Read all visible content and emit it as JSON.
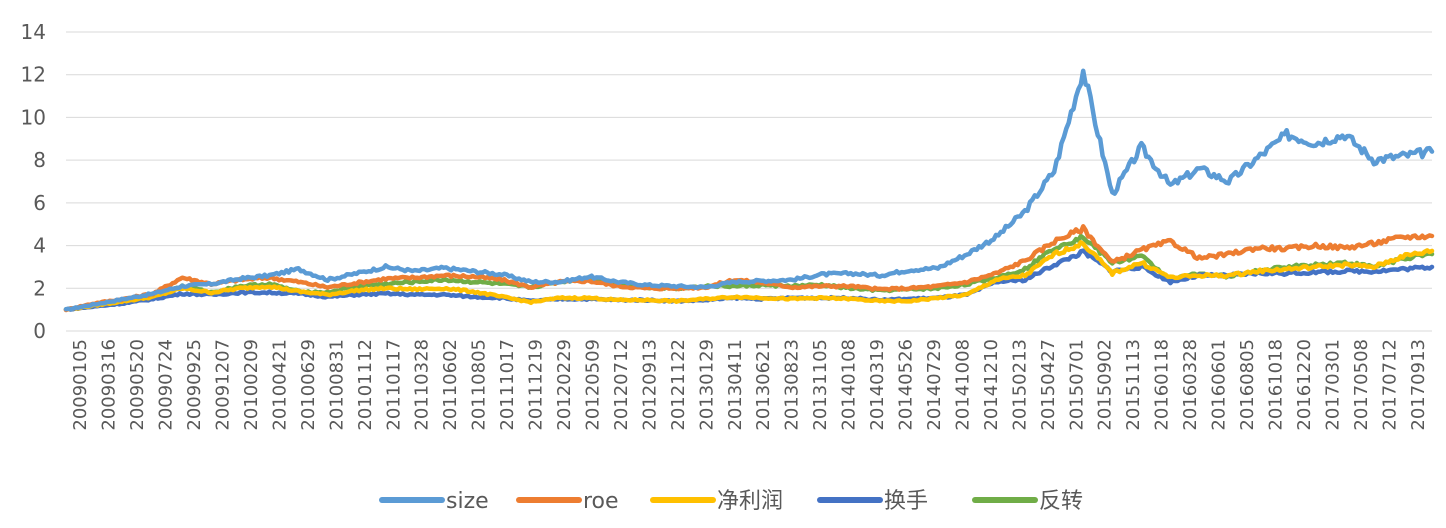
{
  "chart_data": {
    "type": "line",
    "title": "",
    "xlabel": "",
    "ylabel": "",
    "ylim": [
      0,
      14
    ],
    "yticks": [
      0,
      2,
      4,
      6,
      8,
      10,
      12,
      14
    ],
    "grid": true,
    "legend_position": "bottom",
    "x_tick_labels": [
      "20090105",
      "20090316",
      "20090520",
      "20090724",
      "20090925",
      "20091207",
      "20100209",
      "20100421",
      "20100629",
      "20100831",
      "20101112",
      "20110117",
      "20110328",
      "20110602",
      "20110805",
      "20111017",
      "20111219",
      "20120229",
      "20120509",
      "20120712",
      "20120913",
      "20121122",
      "20130129",
      "20130411",
      "20130621",
      "20130823",
      "20131105",
      "20140108",
      "20140319",
      "20140526",
      "20140729",
      "20141008",
      "20141210",
      "20150213",
      "20150427",
      "20150701",
      "20150902",
      "20151113",
      "20160118",
      "20160328",
      "20160601",
      "20160805",
      "20161018",
      "20161220",
      "20170301",
      "20170508",
      "20170712",
      "20170913"
    ],
    "series": [
      {
        "name": "size",
        "color": "#5B9BD5",
        "values": [
          1.0,
          1.25,
          1.5,
          1.75,
          2.1,
          2.2,
          2.45,
          2.6,
          2.9,
          2.4,
          2.7,
          3.0,
          2.8,
          2.95,
          2.8,
          2.65,
          2.3,
          2.3,
          2.55,
          2.3,
          2.15,
          2.1,
          2.05,
          2.3,
          2.35,
          2.4,
          2.65,
          2.7,
          2.6,
          2.85,
          2.95,
          3.6,
          4.4,
          5.6,
          7.5,
          12.2,
          6.4,
          8.6,
          6.8,
          7.6,
          7.0,
          8.1,
          9.2,
          8.8,
          9.2,
          8.0,
          8.2,
          8.4
        ]
      },
      {
        "name": "roe",
        "color": "#ED7D31",
        "values": [
          1.0,
          1.3,
          1.5,
          1.75,
          2.5,
          2.2,
          2.4,
          2.5,
          2.3,
          2.05,
          2.25,
          2.45,
          2.5,
          2.6,
          2.55,
          2.4,
          2.05,
          2.3,
          2.35,
          2.1,
          2.0,
          2.0,
          2.05,
          2.4,
          2.25,
          2.05,
          2.1,
          2.1,
          1.95,
          2.0,
          2.1,
          2.3,
          2.7,
          3.3,
          4.2,
          4.8,
          3.2,
          3.8,
          4.2,
          3.4,
          3.6,
          3.9,
          3.85,
          4.0,
          3.9,
          4.1,
          4.4,
          4.45
        ]
      },
      {
        "name": "净利润",
        "color": "#FFC000",
        "values": [
          1.0,
          1.2,
          1.4,
          1.6,
          2.0,
          1.8,
          2.0,
          2.1,
          1.85,
          1.7,
          1.9,
          2.0,
          1.95,
          2.0,
          1.85,
          1.6,
          1.35,
          1.55,
          1.55,
          1.45,
          1.45,
          1.4,
          1.5,
          1.6,
          1.55,
          1.5,
          1.55,
          1.5,
          1.4,
          1.4,
          1.55,
          1.7,
          2.4,
          2.6,
          3.6,
          4.1,
          2.7,
          3.2,
          2.5,
          2.6,
          2.6,
          2.8,
          2.9,
          3.0,
          3.1,
          3.0,
          3.5,
          3.75
        ]
      },
      {
        "name": "换手",
        "color": "#4472C4",
        "values": [
          1.0,
          1.15,
          1.3,
          1.5,
          1.75,
          1.7,
          1.8,
          1.8,
          1.75,
          1.6,
          1.7,
          1.75,
          1.7,
          1.7,
          1.6,
          1.55,
          1.4,
          1.5,
          1.5,
          1.45,
          1.45,
          1.4,
          1.45,
          1.55,
          1.5,
          1.55,
          1.55,
          1.55,
          1.45,
          1.5,
          1.55,
          1.7,
          2.3,
          2.4,
          3.1,
          3.7,
          2.8,
          3.0,
          2.3,
          2.6,
          2.6,
          2.7,
          2.7,
          2.75,
          2.8,
          2.8,
          2.9,
          3.0
        ]
      },
      {
        "name": "反转",
        "color": "#70AD47",
        "values": [
          1.0,
          1.2,
          1.45,
          1.7,
          2.1,
          1.8,
          2.1,
          2.2,
          1.85,
          1.8,
          2.1,
          2.2,
          2.3,
          2.4,
          2.3,
          2.2,
          2.05,
          2.3,
          2.5,
          2.2,
          2.05,
          2.0,
          2.1,
          2.1,
          2.15,
          2.1,
          2.15,
          2.0,
          1.9,
          1.95,
          2.0,
          2.2,
          2.5,
          2.9,
          3.9,
          4.4,
          3.2,
          3.5,
          2.4,
          2.7,
          2.55,
          2.8,
          3.0,
          3.1,
          3.2,
          3.0,
          3.4,
          3.6
        ]
      }
    ]
  }
}
